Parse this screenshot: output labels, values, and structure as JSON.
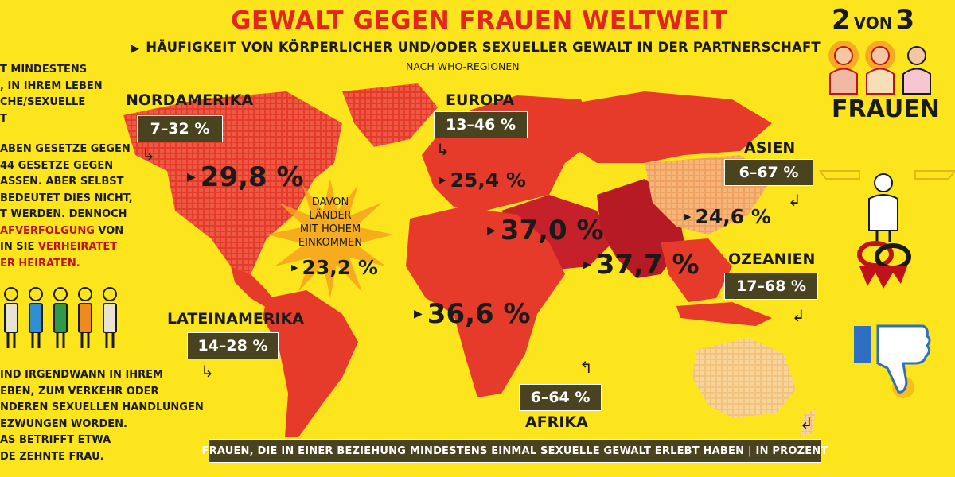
{
  "colors": {
    "background": "#fde51d",
    "title": "#e2261c",
    "map_red": "#e63a2b",
    "map_dark": "#b61a24",
    "map_light": "#f2ab6a",
    "map_pale": "#f7ce8a",
    "box": "#4a4320"
  },
  "header": {
    "title": "GEWALT GEGEN FRAUEN WELTWEIT",
    "subtitle": "HÄUFIGKEIT VON KÖRPERLICHER UND/ODER SEXUELLER GEWALT IN DER PARTNERSCHAFT",
    "subnote": "NACH WHO-REGIONEN"
  },
  "regions": {
    "nordamerika": {
      "name": "NORDAMERIKA",
      "range": "7–32 %",
      "value": "29,8 %"
    },
    "europa": {
      "name": "EUROPA",
      "range": "13–46 %",
      "value": "25,4 %"
    },
    "asien": {
      "name": "ASIEN",
      "range": "6–67 %",
      "value": "24,6 %"
    },
    "ozeanien": {
      "name": "OZEANIEN",
      "range": "17–68 %"
    },
    "lateinamerika": {
      "name": "LATEINAMERIKA",
      "range": "14–28 %"
    },
    "afrika": {
      "name": "AFRIKA",
      "range": "6–64 %",
      "value": "36,6 %"
    },
    "naher_osten": {
      "value": "37,0 %"
    },
    "suedostasien": {
      "value": "37,7 %"
    }
  },
  "high_income": {
    "line1": "DAVON",
    "line2": "LÄNDER",
    "line3": "MIT HOHEM",
    "line4": "EINKOMMEN",
    "value": "23,2 %"
  },
  "left_panel": {
    "top_lines": [
      "T MINDESTENS",
      ", IN IHREM LEBEN",
      "CHE/SEXUELLE",
      "T"
    ],
    "mid_lines": [
      "ABEN GESETZE GEGEN",
      "44  GESETZE  GEGEN",
      "ASSEN. ABER SELBST",
      "BEDEUTET DIES NICHT,",
      "T WERDEN. DENNOCH"
    ],
    "mid_red_1": "AFVERFOLGUNG",
    "mid_after_red_1": " VON",
    "mid_line_7_prefix": "IN SIE ",
    "mid_red_2": "VERHEIRATET",
    "mid_red_3": "ER HEIRATEN.",
    "bottom_lines": [
      "IND IRGENDWANN IN IHREM",
      "EBEN, ZUM VERKEHR ODER",
      "NDEREN SEXUELLEN HANDLUNGEN",
      "EZWUNGEN WORDEN.",
      "AS BETRIFFT ETWA",
      "DE ZEHNTE FRAU."
    ],
    "figure_colors": [
      "#e9e3d4",
      "#2f8fd0",
      "#2e9a4a",
      "#f08a1c",
      "#e9e3d4"
    ]
  },
  "right_panel": {
    "two": "2",
    "von": "VON",
    "three": "3",
    "frauen": "FRAUEN"
  },
  "footer": {
    "text": "FRAUEN,  DIE IN EINER  BEZIEHUNG  MINDESTENS EINMAL SEXUELLE GEWALT ERLEBT HABEN | IN PROZENT"
  }
}
